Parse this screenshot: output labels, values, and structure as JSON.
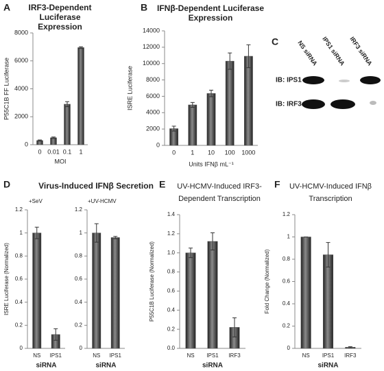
{
  "chart_data": [
    {
      "type": "bar",
      "panel": "A",
      "title": "IRF3-Dependent Luciferase Expression",
      "ylabel": "P55C1B FF Luciferase",
      "xlabel": "MOI",
      "categories": [
        "0",
        "0.01",
        "0.1",
        "1"
      ],
      "values": [
        300,
        500,
        2900,
        6950
      ],
      "errors": [
        40,
        50,
        180,
        60
      ],
      "color": "#555555",
      "ylim": [
        0,
        8000
      ],
      "yticks": [
        0,
        2000,
        4000,
        6000,
        8000
      ]
    },
    {
      "type": "bar",
      "panel": "B",
      "title": "IFNβ-Dependent Luciferase Expression",
      "ylabel": "ISRE Luciferase",
      "xlabel": "Units IFNβ mL⁻¹",
      "categories": [
        "0",
        "1",
        "10",
        "100",
        "1000"
      ],
      "values": [
        2050,
        4950,
        6350,
        10300,
        10900
      ],
      "errors": [
        300,
        300,
        400,
        1000,
        1400
      ],
      "color": "#555555",
      "ylim": [
        0,
        14000
      ],
      "yticks": [
        0,
        2000,
        4000,
        6000,
        8000,
        10000,
        12000,
        14000
      ]
    },
    {
      "type": "bar",
      "panel": "D",
      "title": "Virus-Induced IFNβ Secretion",
      "subtitle": "+SeV",
      "ylabel": "ISRE Luciferase (Normalized)",
      "xlabel": "siRNA",
      "categories": [
        "NS",
        "IPS1"
      ],
      "values": [
        1.0,
        0.12
      ],
      "errors": [
        0.05,
        0.05
      ],
      "color": "#555555",
      "ylim": [
        0,
        1.2
      ],
      "yticks": [
        0,
        0.2,
        0.4,
        0.6,
        0.8,
        1,
        1.2
      ]
    },
    {
      "type": "bar",
      "subtitle": "+UV-HCMV",
      "xlabel": "siRNA",
      "categories": [
        "NS",
        "IPS1"
      ],
      "values": [
        1.0,
        0.96
      ],
      "errors": [
        0.08,
        0.01
      ],
      "color": "#555555",
      "ylim": [
        0,
        1.2
      ],
      "yticks": [
        0,
        0.2,
        0.4,
        0.6,
        0.8,
        1,
        1.2
      ]
    },
    {
      "type": "bar",
      "panel": "E",
      "title": "UV-HCMV-Induced IRF3-Dependent Transcription",
      "ylabel": "P55C1B Luciferase (Normalized)",
      "xlabel": "siRNA",
      "categories": [
        "NS",
        "IPS1",
        "IRF3"
      ],
      "values": [
        1.0,
        1.12,
        0.22
      ],
      "errors": [
        0.05,
        0.09,
        0.1
      ],
      "color": "#555555",
      "ylim": [
        0,
        1.4
      ],
      "yticks": [
        {
          "value": 0,
          "label": "0.0"
        },
        {
          "value": 0.2,
          "label": "0.2"
        },
        {
          "value": 0.4,
          "label": "0.4"
        },
        {
          "value": 0.6,
          "label": "0.6"
        },
        {
          "value": 0.8,
          "label": "0.8"
        },
        {
          "value": 1,
          "label": "1.0"
        },
        {
          "value": 1.2,
          "label": "1.2"
        },
        {
          "value": 1.4,
          "label": "1.4"
        }
      ]
    },
    {
      "type": "bar",
      "panel": "F",
      "title": "UV-HCMV-Induced IFNβ Transcription",
      "ylabel": "Fold Change (Normalized)",
      "xlabel": "siRNA",
      "categories": [
        "NS",
        "IPS1",
        "IRF3"
      ],
      "values": [
        1.0,
        0.84,
        0.01
      ],
      "errors": [
        0,
        0.11,
        0.005
      ],
      "color": "#555555",
      "ylim": [
        0,
        1.2
      ],
      "yticks": [
        0,
        0.2,
        0.4,
        0.6,
        0.8,
        1,
        1.2
      ]
    }
  ],
  "blot": {
    "panel": "C",
    "lanes": [
      "NS siRNA",
      "IPS1 siRNA",
      "IRF3 siRNA"
    ],
    "rows": [
      "IB: IPS1",
      "IB: IRF3"
    ]
  }
}
